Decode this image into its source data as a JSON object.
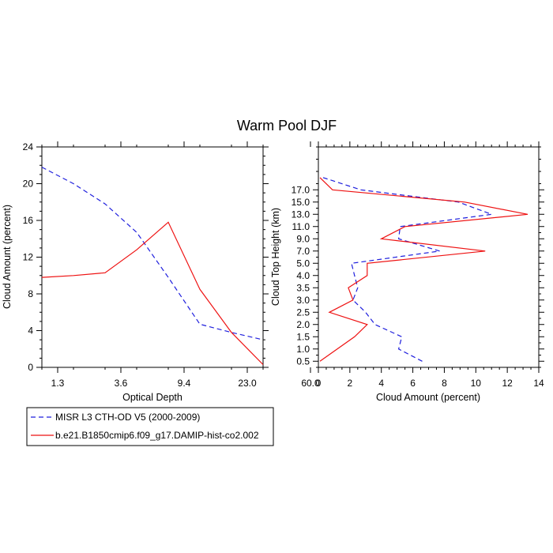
{
  "title": "Warm Pool DJF",
  "chart_data": [
    {
      "type": "line",
      "id": "left",
      "xlabel": "Optical Depth",
      "ylabel": "Cloud Amount (percent)",
      "ylim": [
        0,
        24
      ],
      "y_ticks": [
        "0",
        "4",
        "8",
        "12",
        "16",
        "20",
        "24"
      ],
      "categories": [
        "1.3",
        "3.6",
        "9.4",
        "23.0",
        "60.0"
      ],
      "x_index_range": [
        0,
        7
      ],
      "series": [
        {
          "name": "MISR L3 CTH-OD V5 (2000-2009)",
          "color": "#1f1fdd",
          "dashed": true,
          "x": [
            0,
            1,
            2,
            3,
            4,
            5,
            6,
            7
          ],
          "values": [
            21.8,
            20.0,
            17.8,
            14.7,
            9.8,
            4.7,
            3.8,
            3.0
          ]
        },
        {
          "name": "b.e21.B1850cmip6.f09_g17.DAMIP-hist-co2.002",
          "color": "#ee1111",
          "dashed": false,
          "x": [
            0,
            1,
            2,
            3,
            4,
            5,
            6,
            7
          ],
          "values": [
            9.8,
            10.0,
            10.3,
            12.8,
            15.8,
            8.5,
            3.8,
            0.3
          ]
        }
      ]
    },
    {
      "type": "line",
      "id": "right",
      "xlabel": "Cloud Amount (percent)",
      "ylabel": "Cloud Top Height (km)",
      "xlim": [
        0,
        14
      ],
      "x_ticks": [
        "0",
        "2",
        "4",
        "6",
        "8",
        "10",
        "12",
        "14"
      ],
      "y_range": [
        0,
        18
      ],
      "y_ticks": [
        "0.5",
        "1.0",
        "1.5",
        "2.0",
        "2.5",
        "3.0",
        "3.5",
        "4.0",
        "5.0",
        "7.0",
        "9.0",
        "11.0",
        "13.0",
        "15.0",
        "17.0"
      ],
      "series": [
        {
          "name": "MISR L3 CTH-OD V5 (2000-2009)",
          "color": "#1f1fdd",
          "dashed": true,
          "y_index": [
            0,
            1,
            2,
            3,
            4,
            5,
            6,
            7,
            8,
            9,
            10,
            11,
            12,
            13,
            14,
            15
          ],
          "values": [
            6.6,
            5.1,
            5.3,
            3.6,
            3.0,
            2.2,
            2.5,
            2.3,
            2.1,
            7.7,
            5.1,
            5.2,
            11.0,
            8.9,
            2.7,
            0.3
          ]
        },
        {
          "name": "b.e21.B1850cmip6.f09_g17.DAMIP-hist-co2.002",
          "color": "#ee1111",
          "dashed": false,
          "y_index": [
            0,
            1,
            2,
            3,
            4,
            5,
            6,
            7,
            8,
            9,
            10,
            11,
            12,
            13,
            14,
            15
          ],
          "values": [
            0.1,
            1.2,
            2.3,
            3.1,
            0.7,
            2.2,
            1.9,
            3.1,
            3.1,
            10.6,
            4.0,
            5.5,
            13.3,
            9.3,
            0.9,
            0.1
          ]
        }
      ]
    }
  ],
  "legend": [
    {
      "label": "MISR L3 CTH-OD V5 (2000-2009)",
      "color": "#1f1fdd",
      "dashed": true
    },
    {
      "label": "b.e21.B1850cmip6.f09_g17.DAMIP-hist-co2.002",
      "color": "#ee1111",
      "dashed": false
    }
  ]
}
